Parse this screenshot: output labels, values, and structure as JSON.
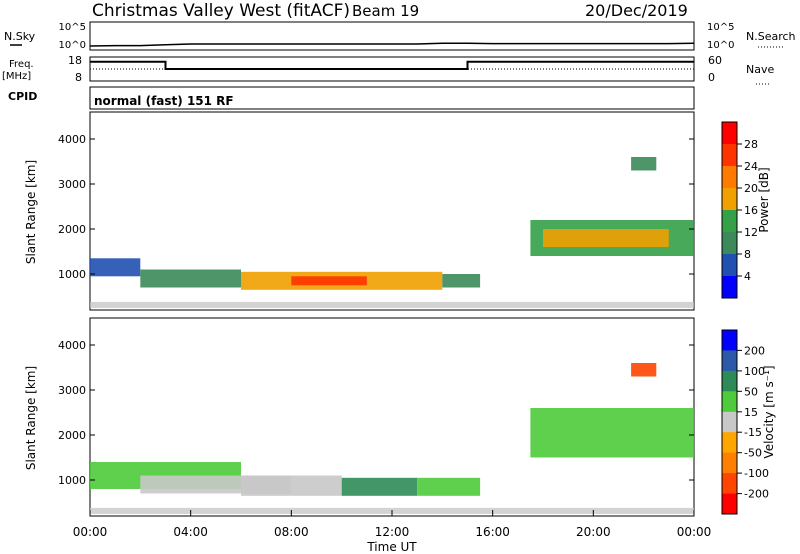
{
  "header": {
    "station": "Christmas Valley West (fitACF)",
    "beam": "Beam 19",
    "date": "20/Dec/2019"
  },
  "colors": {
    "power_scale": [
      "#0000ff",
      "#2050b0",
      "#3c8a5a",
      "#34a048",
      "#f0a000",
      "#ff7a00",
      "#ff3300",
      "#ff0000"
    ],
    "velocity_scale": [
      "#0000ff",
      "#2a5aa8",
      "#2e8b57",
      "#4ecb3a",
      "#c8c8c8",
      "#ffa500",
      "#ff7f00",
      "#ff4500",
      "#ff0000"
    ],
    "ground_scatter": "#c0c0c0"
  },
  "chart_data": [
    {
      "type": "line",
      "name": "noise",
      "left_label": "N.Sky",
      "right_label": "N.Search",
      "left_ticks": [
        "10^5",
        "10^0"
      ],
      "right_ticks": [
        "10^5",
        "10^0"
      ],
      "x_hours": [
        0,
        1,
        2,
        3,
        4,
        5,
        6,
        7,
        8,
        9,
        10,
        11,
        12,
        13,
        14,
        15,
        16,
        17,
        18,
        19,
        20,
        21,
        22,
        23,
        24
      ],
      "sky_log": [
        0.25,
        0.3,
        0.3,
        0.4,
        0.5,
        0.5,
        0.5,
        0.5,
        0.5,
        0.5,
        0.5,
        0.5,
        0.5,
        0.5,
        0.6,
        0.6,
        0.55,
        0.55,
        0.55,
        0.55,
        0.55,
        0.55,
        0.55,
        0.55,
        0.6
      ]
    },
    {
      "type": "line",
      "name": "frequency",
      "left_label": "Freq.",
      "left_unit": "[MHz]",
      "right_label": "Nave",
      "left_ticks": [
        "18",
        "8"
      ],
      "right_ticks": [
        "60",
        "0"
      ],
      "ylim": [
        8,
        18
      ],
      "nave_lim": [
        0,
        60
      ],
      "cpid_label": "CPID",
      "cpid_text": "normal (fast) 151 RF",
      "freq_steps": [
        [
          0,
          16
        ],
        [
          3,
          13
        ],
        [
          15,
          13
        ],
        [
          15,
          16
        ],
        [
          24,
          16
        ]
      ],
      "nave_level": 30
    },
    {
      "type": "heatmap",
      "name": "power",
      "ylabel": "Slant Range [km]",
      "colorbar_label": "Power [dB]",
      "yticks": [
        1000,
        2000,
        3000,
        4000
      ],
      "ylim": [
        200,
        4600
      ],
      "colorbar_ticks": [
        4,
        8,
        12,
        16,
        20,
        24,
        28
      ],
      "regions": [
        {
          "x": [
            0,
            2
          ],
          "r": [
            950,
            1350
          ],
          "level": 2
        },
        {
          "x": [
            2,
            6
          ],
          "r": [
            700,
            1100
          ],
          "level": 3
        },
        {
          "x": [
            6,
            14
          ],
          "r": [
            650,
            1050
          ],
          "level": 5
        },
        {
          "x": [
            8,
            11
          ],
          "r": [
            750,
            950
          ],
          "level": 7
        },
        {
          "x": [
            14,
            15.5
          ],
          "r": [
            700,
            1000
          ],
          "level": 3
        },
        {
          "x": [
            17.5,
            24
          ],
          "r": [
            1400,
            2200
          ],
          "level": 4
        },
        {
          "x": [
            18,
            23
          ],
          "r": [
            1600,
            2000
          ],
          "level": 5
        },
        {
          "x": [
            21.5,
            22.5
          ],
          "r": [
            3300,
            3600
          ],
          "level": 3
        }
      ]
    },
    {
      "type": "heatmap",
      "name": "velocity",
      "ylabel": "Slant Range [km]",
      "colorbar_label": "Velocity [m s⁻¹]",
      "yticks": [
        1000,
        2000,
        3000,
        4000
      ],
      "ylim": [
        200,
        4600
      ],
      "colorbar_ticks": [
        200,
        100,
        50,
        15,
        -15,
        -50,
        -100,
        -200
      ],
      "xlabel": "Time UT",
      "xticks": [
        "00:00",
        "04:00",
        "08:00",
        "12:00",
        "16:00",
        "20:00",
        "00:00"
      ],
      "regions": [
        {
          "x": [
            0,
            6
          ],
          "r": [
            800,
            1400
          ],
          "level": 4
        },
        {
          "x": [
            2,
            8
          ],
          "r": [
            700,
            1100
          ],
          "level": 5
        },
        {
          "x": [
            6,
            10
          ],
          "r": [
            650,
            1100
          ],
          "level": 5
        },
        {
          "x": [
            10,
            13
          ],
          "r": [
            650,
            1050
          ],
          "level": 3
        },
        {
          "x": [
            13,
            15.5
          ],
          "r": [
            650,
            1050
          ],
          "level": 4
        },
        {
          "x": [
            17.5,
            24
          ],
          "r": [
            1500,
            2600
          ],
          "level": 4
        },
        {
          "x": [
            21.5,
            22.5
          ],
          "r": [
            3300,
            3600
          ],
          "level": 8
        }
      ]
    }
  ]
}
